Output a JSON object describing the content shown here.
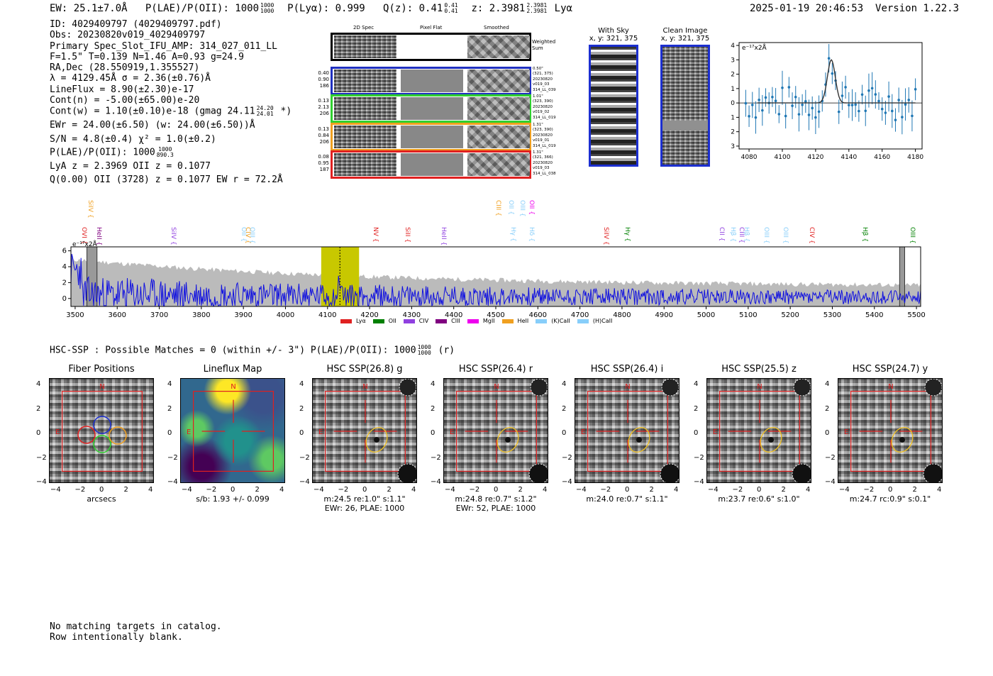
{
  "header": {
    "ew": "EW: 25.1±7.0Å",
    "plae_label": "P(LAE)/P(OII): 1000",
    "plae_hi": "1000",
    "plae_lo": "1000",
    "plya": "P(Lyα): 0.999",
    "q_label": "Q(z): 0.41",
    "q_hi": "0.41",
    "q_lo": "0.41",
    "z_label": "z: 2.3981",
    "z_hi": "2.3981",
    "z_lo": "2.3981",
    "line_name": "Lyα",
    "timestamp": "2025-01-19 20:46:53",
    "version": "Version 1.22.3"
  },
  "info": {
    "id": "ID: 4029409797 (4029409797.pdf)",
    "obs": "Obs: 20230820v019_4029409797",
    "primary": "Primary Spec_Slot_IFU_AMP: 314_027_011_LL",
    "f_line": "F=1.5\"  T=0.139  N=1.46  A=0.93  g=24.9",
    "radec": "RA,Dec (28.550919,1.355527)",
    "lambda": "λ = 4129.45Å  σ = 2.36(±0.76)Å",
    "lineflux": "LineFlux = 8.90(±2.30)e-17",
    "cont_n": "Cont(n) = -5.00(±65.00)e-20",
    "cont_w": "Cont(w) = 1.10(±0.10)e-18 (gmag 24.11",
    "gmag_hi": "24.20",
    "gmag_lo": "24.01",
    "cont_w_end": "*)",
    "ewr": "EWr = 24.00(±6.50) (w: 24.00(±6.50))Å",
    "sn": "S/N = 4.8(±0.4)  χ² = 1.0(±0.2)",
    "plae": "P(LAE)/P(OII): 1000",
    "plae_hi": "1000",
    "plae_lo": "890.3",
    "lya_z": "LyA z = 2.3969  OII z = 0.1077",
    "q_line": "Q(0.00) OII (3728) z = 0.1077  EW r = 72.2Å"
  },
  "spec2d": {
    "col_headers": [
      "2D Spec",
      "Pixel Flat",
      "Smoothed"
    ],
    "weighted_sum": "Weighted Sum",
    "rows": [
      {
        "left": [
          "0.40",
          "0.90",
          "186"
        ],
        "right": [
          "0.50\"",
          "(321, 375)",
          "20230820",
          "v019_03",
          "314_LL_039"
        ],
        "color": "#2030c0"
      },
      {
        "left": [
          "0.13",
          "2.13",
          "206"
        ],
        "right": [
          "1.01\"",
          "(323, 390)",
          "20230820",
          "v019_02",
          "314_LL_019"
        ],
        "color": "#30d030"
      },
      {
        "left": [
          "0.13",
          "0.84",
          "206"
        ],
        "right": [
          "1.31\"",
          "(323, 390)",
          "20230820",
          "v019_01",
          "314_LL_019"
        ],
        "color": "#f0a020"
      },
      {
        "left": [
          "0.08",
          "0.95",
          "187"
        ],
        "right": [
          "1.31\"",
          "(321, 366)",
          "20230820",
          "v019_03",
          "314_LL_038"
        ],
        "color": "#e02020"
      }
    ]
  },
  "sky": {
    "with_sky_title": "With Sky",
    "with_sky_sub": "x, y: 321, 375",
    "clean_title": "Clean Image",
    "clean_sub": "x, y: 321, 375"
  },
  "zoom_plot": {
    "ylabel": "e⁻¹⁷x2Å",
    "x_ticks": [
      "4080",
      "4100",
      "4120",
      "4140",
      "4160",
      "4180"
    ],
    "y_ticks": [
      "4",
      "3",
      "2",
      "1",
      "0",
      "−1",
      "−2",
      "−3"
    ]
  },
  "chart_data": {
    "type": "line",
    "title": "",
    "ylabel": "e⁻¹⁷x2Å",
    "xlim": [
      3490,
      5510
    ],
    "ylim": [
      -1,
      6.5
    ],
    "x_ticks": [
      3500,
      3600,
      3700,
      3800,
      3900,
      4000,
      4100,
      4200,
      4300,
      4400,
      4500,
      4600,
      4700,
      4800,
      4900,
      5000,
      5100,
      5200,
      5300,
      5400,
      5500
    ],
    "y_ticks": [
      0,
      2,
      4,
      6
    ],
    "highlight_band": [
      4085,
      4175
    ],
    "line_center": 4129.45,
    "line_labels_top": [
      {
        "name": "SiIV",
        "x": 3536,
        "color": "#f0a020"
      },
      {
        "name": "CIII",
        "x": 4505,
        "color": "#f0a020"
      },
      {
        "name": "OII",
        "x": 4535,
        "color": "#87cefa"
      },
      {
        "name": "OIII",
        "x": 4563,
        "color": "#87cefa"
      },
      {
        "name": "OII",
        "x": 4585,
        "color": "#ee00ee"
      }
    ],
    "line_labels": [
      {
        "name": "OVI",
        "x": 3520,
        "color": "#e02020"
      },
      {
        "name": "HeII",
        "x": 3555,
        "color": "#800080"
      },
      {
        "name": "SiIV",
        "x": 3732,
        "color": "#9040e0"
      },
      {
        "name": "OII",
        "x": 3900,
        "color": "#87cefa"
      },
      {
        "name": "CIV",
        "x": 3910,
        "color": "#f0a020"
      },
      {
        "name": "OIII",
        "x": 3920,
        "color": "#87cefa"
      },
      {
        "name": "NV",
        "x": 4213,
        "color": "#e02020"
      },
      {
        "name": "SiII",
        "x": 4290,
        "color": "#e02020"
      },
      {
        "name": "HeII",
        "x": 4376,
        "color": "#9040e0"
      },
      {
        "name": "Hγ",
        "x": 4540,
        "color": "#87cefa"
      },
      {
        "name": "Hδ",
        "x": 4584,
        "color": "#87cefa"
      },
      {
        "name": "SiIV",
        "x": 4762,
        "color": "#e02020"
      },
      {
        "name": "Hγ",
        "x": 4812,
        "color": "#008000"
      },
      {
        "name": "CII",
        "x": 5036,
        "color": "#9040e0"
      },
      {
        "name": "Hβ",
        "x": 5063,
        "color": "#87cefa"
      },
      {
        "name": "CIII",
        "x": 5083,
        "color": "#9040e0"
      },
      {
        "name": "Hβ",
        "x": 5096,
        "color": "#87cefa"
      },
      {
        "name": "OIII",
        "x": 5143,
        "color": "#87cefa"
      },
      {
        "name": "OIII",
        "x": 5188,
        "color": "#87cefa"
      },
      {
        "name": "CIV",
        "x": 5250,
        "color": "#e02020"
      },
      {
        "name": "Hβ",
        "x": 5377,
        "color": "#008000"
      },
      {
        "name": "OIII",
        "x": 5489,
        "color": "#008000"
      }
    ],
    "legend": [
      {
        "name": "Lyα",
        "color": "#e02020"
      },
      {
        "name": "OII",
        "color": "#008000"
      },
      {
        "name": "CIV",
        "color": "#9040e0"
      },
      {
        "name": "CIII",
        "color": "#800080"
      },
      {
        "name": "MgII",
        "color": "#ee00ee"
      },
      {
        "name": "HeII",
        "color": "#f0a020"
      },
      {
        "name": "(K)CaII",
        "color": "#87cefa"
      },
      {
        "name": "(H)CaII",
        "color": "#87cefa"
      }
    ]
  },
  "hsc": {
    "summary": "HSC-SSP : Possible Matches = 0 (within +/- 3\")  P(LAE)/P(OII): 1000",
    "summary_hi": "1000",
    "summary_lo": "1000",
    "summary_band": "(r)",
    "panels": [
      {
        "title": "Fiber Positions",
        "cap1": "arcsecs",
        "cap2": ""
      },
      {
        "title": "Lineflux Map",
        "cap1": "s/b: 1.93 +/- 0.099",
        "cap2": ""
      },
      {
        "title": "HSC SSP(26.8) g",
        "cap1": "m:24.5  re:1.0\"  s:1.1\"",
        "cap2": "EWr: 26, PLAE: 1000"
      },
      {
        "title": "HSC SSP(26.4) r",
        "cap1": "m:24.8  re:0.7\"  s:1.2\"",
        "cap2": "EWr: 52, PLAE: 1000"
      },
      {
        "title": "HSC SSP(26.4) i",
        "cap1": "m:24.0  re:0.7\"  s:1.1\"",
        "cap2": ""
      },
      {
        "title": "HSC SSP(25.5) z",
        "cap1": "m:23.7  re:0.6\"  s:1.0\"",
        "cap2": ""
      },
      {
        "title": "HSC SSP(24.7) y",
        "cap1": "m:24.7  rc:0.9\"  s:0.1\"",
        "cap2": ""
      }
    ],
    "compass_n": "N",
    "compass_e": "E",
    "x_ticks": [
      "−4",
      "−2",
      "0",
      "2",
      "4"
    ],
    "y_ticks": [
      "4",
      "2",
      "0",
      "−2",
      "−4"
    ]
  },
  "footer": {
    "line1": "No matching targets in catalog.",
    "line2": "Row intentionally blank."
  }
}
